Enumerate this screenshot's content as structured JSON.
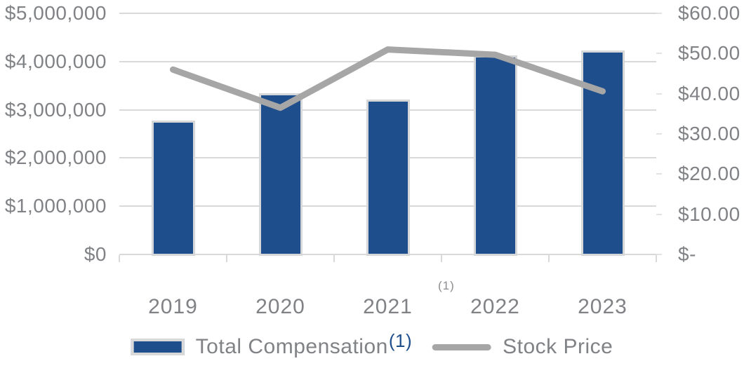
{
  "chart_data": {
    "type": "bar+line combo",
    "categories": [
      "2019",
      "2020",
      "2021",
      "2022",
      "2023"
    ],
    "series": [
      {
        "name": "Total Compensation",
        "footnote_marker": "(1)",
        "type": "bar",
        "axis": "left",
        "values": [
          2775000,
          3340000,
          3205000,
          4125000,
          4230000
        ],
        "color": "#1f4e8c"
      },
      {
        "name": "Stock Price",
        "type": "line",
        "axis": "right",
        "values": [
          46.0,
          36.5,
          51.0,
          49.7,
          40.6
        ],
        "color": "#a6a6a6"
      }
    ],
    "left_axis": {
      "tick_labels": [
        "$5,000,000",
        "$4,000,000",
        "$3,000,000",
        "$2,000,000",
        "$1,000,000",
        "$0"
      ],
      "min": 0,
      "max": 5000000,
      "step": 1000000
    },
    "right_axis": {
      "tick_labels": [
        "$60.00",
        "$50.00",
        "$40.00",
        "$30.00",
        "$20.00",
        "$10.00",
        "$-"
      ],
      "min": 0,
      "max": 60,
      "step": 10
    },
    "footnote_marker": "(1)",
    "grid": true,
    "legend_position": "bottom",
    "title": "",
    "xlabel": "",
    "ylabel_left": "",
    "ylabel_right": ""
  },
  "colors": {
    "bar_fill": "#1f4e8c",
    "bar_border": "#d6d7d9",
    "line": "#a6a6a6",
    "gridline": "#d9d9d9",
    "axis_text": "#808285",
    "footnote_blue": "#1f4e8c",
    "background": "#ffffff"
  }
}
